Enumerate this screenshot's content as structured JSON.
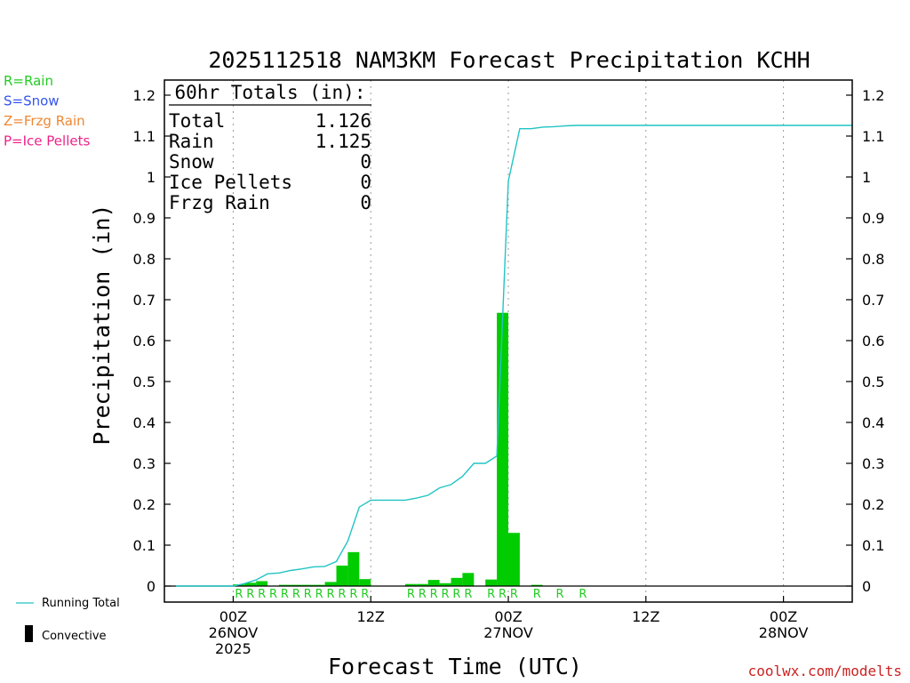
{
  "title": "2025112518 NAM3KM Forecast Precipitation KCHH",
  "legend_types": [
    {
      "label": "R=Rain",
      "color": "#22cc22"
    },
    {
      "label": "S=Snow",
      "color": "#3355ee"
    },
    {
      "label": "Z=Frzg Rain",
      "color": "#ee8833"
    },
    {
      "label": "P=Ice Pellets",
      "color": "#ee2288"
    }
  ],
  "totals_box": {
    "header": "60hr Totals (in):",
    "rows": [
      {
        "label": "Total",
        "value": "1.126"
      },
      {
        "label": "Rain",
        "value": "1.125"
      },
      {
        "label": "Snow",
        "value": "0"
      },
      {
        "label": "Ice Pellets",
        "value": "0"
      },
      {
        "label": "Frzg Rain",
        "value": "0"
      }
    ]
  },
  "bottom_legend": {
    "running_total": "Running Total",
    "convective": "Convective"
  },
  "credit": "coolwx.com/modelts",
  "colors": {
    "bar": "#00cc00",
    "running_total": "#22c4c4",
    "rain_letter": "#22cc22",
    "credit": "#cc2222"
  },
  "chart_data": {
    "type": "bar",
    "title": "2025112518 NAM3KM Forecast Precipitation KCHH",
    "xlabel": "Forecast Time (UTC)",
    "ylabel": "Precipitation (in)",
    "ylim": [
      0,
      1.25
    ],
    "xlim_hours": [
      -6,
      54
    ],
    "yticks": [
      0,
      0.1,
      0.2,
      0.3,
      0.4,
      0.5,
      0.6,
      0.7,
      0.8,
      0.9,
      1,
      1.1,
      1.2
    ],
    "ytick_labels": [
      "0",
      "0.1",
      "0.2",
      "0.3",
      "0.4",
      "0.5",
      "0.6",
      "0.7",
      "0.8",
      "0.9",
      "1",
      "1.1",
      "1.2"
    ],
    "xticks": [
      {
        "hour": 0,
        "lines": [
          "00Z",
          "26NOV",
          "2025"
        ]
      },
      {
        "hour": 12,
        "lines": [
          "12Z"
        ]
      },
      {
        "hour": 24,
        "lines": [
          "00Z",
          "27NOV"
        ]
      },
      {
        "hour": 36,
        "lines": [
          "12Z"
        ]
      },
      {
        "hour": 48,
        "lines": [
          "00Z",
          "28NOV"
        ]
      }
    ],
    "grid": "vertical dotted at tick hours",
    "series": [
      {
        "name": "Precipitation",
        "hour_ending": [
          1,
          2,
          3,
          4,
          5,
          6,
          7,
          8,
          9,
          10,
          11,
          12,
          13,
          14,
          15,
          16,
          17,
          18,
          19,
          20,
          21,
          22,
          23,
          24,
          25,
          26,
          27,
          28,
          29,
          30,
          31,
          32,
          33,
          34,
          35,
          36
        ],
        "values": [
          0.004,
          0.008,
          0.012,
          0.0,
          0.003,
          0.003,
          0.003,
          0.003,
          0.01,
          0.05,
          0.083,
          0.017,
          0.0,
          0.0,
          0.0,
          0.005,
          0.005,
          0.015,
          0.007,
          0.02,
          0.032,
          0.0,
          0.016,
          0.668,
          0.13,
          0.0,
          0.003,
          0.0,
          0.0,
          0.0,
          0.0,
          0.0,
          0.0,
          0.0,
          0.0,
          0.0
        ]
      },
      {
        "name": "Running Total",
        "hours": [
          -5,
          0,
          1,
          2,
          3,
          4,
          5,
          6,
          7,
          8,
          9,
          10,
          11,
          12,
          13,
          14,
          15,
          16,
          17,
          18,
          19,
          20,
          21,
          22,
          23,
          24,
          25,
          26,
          27,
          28,
          29,
          30,
          54
        ],
        "values": [
          0,
          0,
          0.006,
          0.015,
          0.03,
          0.032,
          0.038,
          0.042,
          0.047,
          0.048,
          0.06,
          0.11,
          0.193,
          0.21,
          0.21,
          0.21,
          0.21,
          0.215,
          0.222,
          0.24,
          0.248,
          0.268,
          0.3,
          0.3,
          0.318,
          0.99,
          1.118,
          1.118,
          1.122,
          1.123,
          1.125,
          1.126,
          1.126
        ]
      }
    ],
    "precip_type_letters": {
      "letter": "R",
      "hours": [
        1,
        2,
        3,
        4,
        5,
        6,
        7,
        8,
        9,
        10,
        11,
        12,
        16,
        17,
        18,
        19,
        20,
        21,
        23,
        24,
        25,
        27,
        29,
        31
      ]
    }
  }
}
